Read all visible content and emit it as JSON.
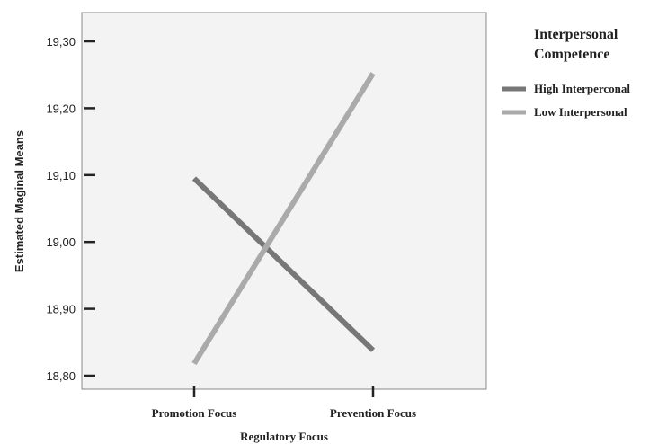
{
  "chart_data": {
    "type": "line",
    "title": "",
    "xlabel": "Regulatory Focus",
    "ylabel": "Estimated Maginal Means",
    "categories": [
      "Promotion Focus",
      "Prevention Focus"
    ],
    "ylim": [
      18.78,
      19.34
    ],
    "yticks": [
      18.8,
      18.9,
      19.0,
      19.1,
      19.2,
      19.3
    ],
    "ytick_labels": [
      "18,80",
      "18,90",
      "19,00",
      "19,10",
      "19,20",
      "19,30"
    ],
    "grid": false,
    "legend": {
      "title_line1": "Interpersonal",
      "title_line2": "Competence",
      "placement": "right"
    },
    "series": [
      {
        "name": "High Interperconal",
        "values": [
          19.095,
          18.838
        ],
        "color": "#777777"
      },
      {
        "name": "Low Interpersonal",
        "values": [
          18.818,
          19.252
        ],
        "color": "#aaaaaa"
      }
    ]
  }
}
